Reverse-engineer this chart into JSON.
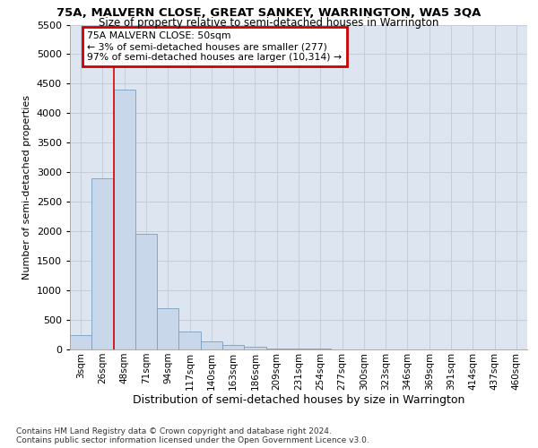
{
  "title1": "75A, MALVERN CLOSE, GREAT SANKEY, WARRINGTON, WA5 3QA",
  "title2": "Size of property relative to semi-detached houses in Warrington",
  "xlabel": "Distribution of semi-detached houses by size in Warrington",
  "ylabel": "Number of semi-detached properties",
  "footnote1": "Contains HM Land Registry data © Crown copyright and database right 2024.",
  "footnote2": "Contains public sector information licensed under the Open Government Licence v3.0.",
  "bar_labels": [
    "3sqm",
    "26sqm",
    "48sqm",
    "71sqm",
    "94sqm",
    "117sqm",
    "140sqm",
    "163sqm",
    "186sqm",
    "209sqm",
    "231sqm",
    "254sqm",
    "277sqm",
    "300sqm",
    "323sqm",
    "346sqm",
    "369sqm",
    "391sqm",
    "414sqm",
    "437sqm",
    "460sqm"
  ],
  "bar_values": [
    250,
    2900,
    4400,
    1950,
    700,
    300,
    130,
    80,
    50,
    20,
    10,
    8,
    5,
    3,
    2,
    1,
    1,
    0,
    0,
    0,
    0
  ],
  "bar_color": "#c8d8ea",
  "bar_edge_color": "#7a9ec0",
  "red_line_x": 1.5,
  "red_line_color": "#dd0000",
  "ann_line1": "75A MALVERN CLOSE: 50sqm",
  "ann_line2": "← 3% of semi-detached houses are smaller (277)",
  "ann_line3": "97% of semi-detached houses are larger (10,314) →",
  "ann_box_fc": "#ffffff",
  "ann_box_ec": "#cc0000",
  "ylim_max": 5500,
  "yticks": [
    0,
    500,
    1000,
    1500,
    2000,
    2500,
    3000,
    3500,
    4000,
    4500,
    5000,
    5500
  ],
  "grid_color": "#c5cdd8",
  "plot_bg": "#dde6f0",
  "fig_bg": "#ffffff"
}
